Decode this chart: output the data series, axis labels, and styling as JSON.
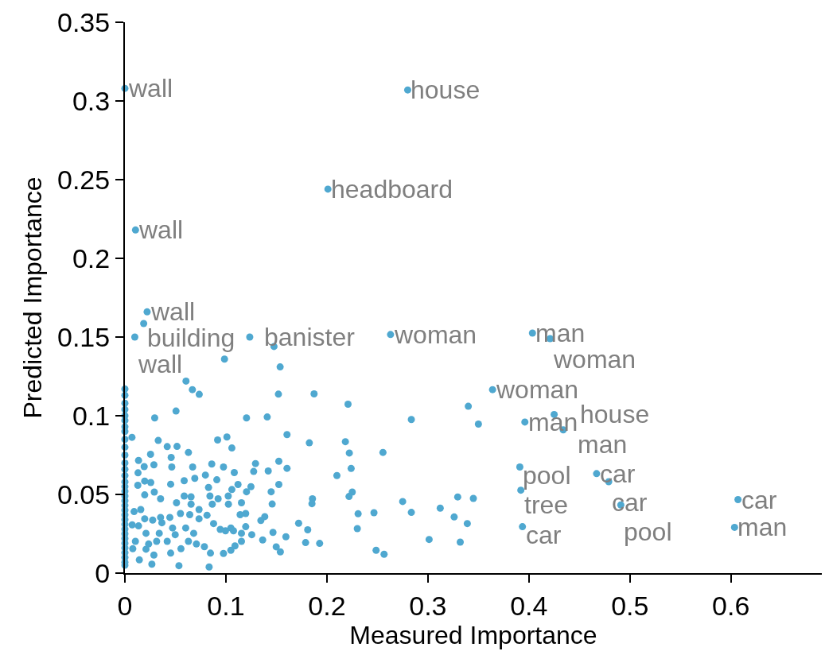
{
  "chart_data": {
    "type": "scatter",
    "xlabel": "Measured Importance",
    "ylabel": "Predicted Importance",
    "xlim": [
      0,
      0.69
    ],
    "xticks": [
      0,
      0.1,
      0.2,
      0.3,
      0.4,
      0.5,
      0.6
    ],
    "ylim": [
      0,
      0.35
    ],
    "yticks": [
      0,
      0.05,
      0.1,
      0.15,
      0.2,
      0.25,
      0.3,
      0.35
    ],
    "grid": false,
    "marker": "circle",
    "series": [
      {
        "color": "#4fa8d0",
        "x": [
          0,
          0.28,
          0.201,
          0.0105,
          0.022,
          0.0186,
          0.0098,
          0.1236,
          0.1476,
          0.263,
          0.4035,
          0.421,
          0.364,
          0.396,
          0.425,
          0.434,
          0.391,
          0.392,
          0.3936,
          0.467,
          0.479,
          0.491,
          0.607,
          0.6036,
          0.34,
          0.35,
          0.3295,
          0.345,
          0.326,
          0.339,
          0.332,
          0.0986,
          0.1537,
          0.0605,
          0.0668,
          0.0736,
          0.152,
          0.1873,
          0.2209,
          0.2836,
          0.0506,
          0.0295,
          0.1204,
          0.1409,
          0.007,
          0.033,
          0.0918,
          0.101,
          0.1059,
          0.1605,
          0.1826,
          0.2183,
          0.2222,
          0.2555,
          0.0419,
          0.0516,
          0.0629,
          0.0254,
          0.0458,
          0.0135,
          0.0191,
          0.0287,
          0.0464,
          0.0671,
          0.086,
          0.0976,
          0.1083,
          0.1293,
          0.1275,
          0.1419,
          0.1524,
          0.1605,
          0.2099,
          0.224,
          0.013,
          0.0128,
          0.0196,
          0.0256,
          0.0453,
          0.0587,
          0.0692,
          0.0797,
          0.091,
          0.112,
          0.1248,
          0.1524,
          0.0828,
          0.1059,
          0.1204,
          0.1448,
          0.1857,
          0.1852,
          0.2251,
          0.2219,
          0.0196,
          0.0291,
          0.0353,
          0.0587,
          0.0655,
          0.0842,
          0.0923,
          0.1025,
          0.1154,
          0.1458,
          0.275,
          0.3122,
          0.2309,
          0.2466,
          0.2836,
          0.2301,
          0.3012,
          0.2487,
          0.2566,
          0.172,
          0.181,
          0.1928,
          0.1789,
          0.1346,
          0.1385,
          0.1466,
          0.1594,
          0.1498,
          0.1539,
          0.1364,
          0.1256,
          0.1196,
          0.1154,
          0.109,
          0.1049,
          0.0976,
          0.0847,
          0.0834,
          0.0535,
          0.0267,
          0.0996,
          0.0944,
          0.1049,
          0.0878,
          0.0813,
          0.0734,
          0.0642,
          0.055,
          0.0445,
          0.0353,
          0.0275,
          0.0196,
          0.0157,
          0.0091,
          0.0072,
          0.0135,
          0.0209,
          0.034,
          0.0419,
          0.0498,
          0.0629,
          0.0708,
          0.0787,
          0.0555,
          0.0453,
          0.0287,
          0.0209,
          0.0143,
          0.0104,
          0.0078,
          0.0235,
          0.0314,
          0.0366,
          0.0472,
          0.0602,
          0.0681,
          0.0655,
          0.0511,
          0.0734,
          0.0865,
          0.1023,
          0.1141,
          0.1196,
          0.1075,
          0.1154,
          0,
          0,
          0,
          0,
          0,
          0,
          0,
          0,
          0,
          0,
          0,
          0,
          0,
          0,
          0,
          0,
          0,
          0,
          0,
          0,
          0,
          0,
          0,
          0,
          0,
          0,
          0,
          0,
          0,
          0,
          0,
          0,
          0
        ],
        "values": [
          0.308,
          0.307,
          0.244,
          0.218,
          0.166,
          0.1586,
          0.15,
          0.15,
          0.144,
          0.1516,
          0.1525,
          0.149,
          0.1166,
          0.096,
          0.1008,
          0.091,
          0.0674,
          0.0527,
          0.0295,
          0.0632,
          0.0581,
          0.0433,
          0.0467,
          0.0291,
          0.106,
          0.0947,
          0.0484,
          0.0475,
          0.0357,
          0.0315,
          0.0197,
          0.136,
          0.131,
          0.122,
          0.1166,
          0.1136,
          0.1137,
          0.1139,
          0.1073,
          0.0976,
          0.103,
          0.0986,
          0.0986,
          0.0992,
          0.0863,
          0.0843,
          0.0846,
          0.0865,
          0.0795,
          0.088,
          0.0828,
          0.0835,
          0.0763,
          0.0767,
          0.0804,
          0.0805,
          0.0767,
          0.0755,
          0.0735,
          0.0716,
          0.0677,
          0.0688,
          0.0674,
          0.0674,
          0.0693,
          0.0674,
          0.0639,
          0.0696,
          0.0646,
          0.0649,
          0.0711,
          0.0666,
          0.062,
          0.0665,
          0.0637,
          0.0558,
          0.0585,
          0.0576,
          0.0565,
          0.0587,
          0.0602,
          0.0623,
          0.0593,
          0.0563,
          0.0549,
          0.0563,
          0.0544,
          0.0531,
          0.0517,
          0.0517,
          0.0472,
          0.0441,
          0.0515,
          0.0487,
          0.0497,
          0.0515,
          0.0472,
          0.049,
          0.0485,
          0.049,
          0.0472,
          0.0438,
          0.0447,
          0.0439,
          0.0455,
          0.0413,
          0.0377,
          0.0384,
          0.0386,
          0.0283,
          0.0214,
          0.0145,
          0.012,
          0.0317,
          0.0275,
          0.0189,
          0.0194,
          0.0334,
          0.0359,
          0.0259,
          0.0231,
          0.0167,
          0.0135,
          0.0211,
          0.0244,
          0.0295,
          0.0202,
          0.0173,
          0.0145,
          0.0125,
          0.0127,
          0.0039,
          0.0047,
          0.0057,
          0.0269,
          0.0278,
          0.0287,
          0.0315,
          0.0368,
          0.0345,
          0.0371,
          0.0379,
          0.0354,
          0.0354,
          0.0337,
          0.0345,
          0.0404,
          0.0391,
          0.0307,
          0.03,
          0.0253,
          0.0253,
          0.0202,
          0.0244,
          0.0202,
          0.0185,
          0.0168,
          0.0155,
          0.0127,
          0.0115,
          0.0152,
          0.0084,
          0.0202,
          0.0155,
          0.0185,
          0.0202,
          0.032,
          0.0287,
          0.0287,
          0.0253,
          0.0438,
          0.0447,
          0.0404,
          0.0438,
          0.049,
          0.0371,
          0.0379,
          0.0269,
          0.0253,
          0.117,
          0.113,
          0.108,
          0.104,
          0.1,
          0.097,
          0.093,
          0.09,
          0.085,
          0.08,
          0.075,
          0.07,
          0.066,
          0.062,
          0.058,
          0.055,
          0.052,
          0.049,
          0.046,
          0.043,
          0.04,
          0.037,
          0.034,
          0.031,
          0.028,
          0.025,
          0.022,
          0.019,
          0.016,
          0.013,
          0.01,
          0.007,
          0.005
        ]
      }
    ],
    "annotations": [
      {
        "text": "wall",
        "x": 0,
        "y": 0.308
      },
      {
        "text": "house",
        "x": 0.28,
        "y": 0.307
      },
      {
        "text": "headboard",
        "x": 0.201,
        "y": 0.244
      },
      {
        "text": "wall",
        "x": 0.0105,
        "y": 0.218
      },
      {
        "text": "wall",
        "x": 0.022,
        "y": 0.166
      },
      {
        "text": "building",
        "x": 0.0186,
        "y": 0.1586
      },
      {
        "text": "wall",
        "x": 0.0098,
        "y": 0.15
      },
      {
        "text": "banister",
        "x": 0.1236,
        "y": 0.15
      },
      {
        "text": "woman",
        "x": 0.263,
        "y": 0.1516
      },
      {
        "text": "man",
        "x": 0.4035,
        "y": 0.1525
      },
      {
        "text": "woman",
        "x": 0.421,
        "y": 0.149
      },
      {
        "text": "woman",
        "x": 0.364,
        "y": 0.1166
      },
      {
        "text": "man",
        "x": 0.396,
        "y": 0.096
      },
      {
        "text": "house",
        "x": 0.425,
        "y": 0.1008
      },
      {
        "text": "man",
        "x": 0.434,
        "y": 0.091
      },
      {
        "text": "pool",
        "x": 0.391,
        "y": 0.0674
      },
      {
        "text": "tree",
        "x": 0.392,
        "y": 0.0527
      },
      {
        "text": "car",
        "x": 0.3936,
        "y": 0.0295
      },
      {
        "text": "car",
        "x": 0.467,
        "y": 0.0632
      },
      {
        "text": "car",
        "x": 0.479,
        "y": 0.0581
      },
      {
        "text": "pool",
        "x": 0.491,
        "y": 0.0433
      },
      {
        "text": "car",
        "x": 0.607,
        "y": 0.0467
      },
      {
        "text": "man",
        "x": 0.6036,
        "y": 0.0291
      }
    ]
  }
}
